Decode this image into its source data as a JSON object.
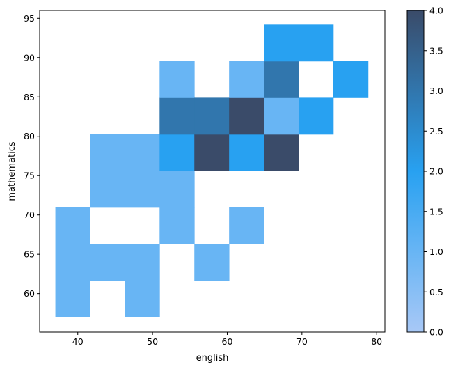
{
  "chart_data": {
    "type": "heatmap",
    "title": "",
    "xlabel": "english",
    "ylabel": "mathematics",
    "xlim": [
      34.9,
      81.1
    ],
    "ylim": [
      55.1,
      96.0
    ],
    "xticks": [
      40,
      50,
      60,
      70,
      80
    ],
    "yticks": [
      60,
      65,
      70,
      75,
      80,
      85,
      90,
      95
    ],
    "x_edges": [
      37.0,
      41.65,
      46.3,
      50.95,
      55.6,
      60.25,
      64.9,
      69.55,
      74.2,
      78.85
    ],
    "y_edges": [
      57.0,
      61.65,
      66.3,
      70.95,
      75.6,
      80.25,
      84.9,
      89.55,
      94.2
    ],
    "counts": [
      [
        1,
        1,
        1,
        0,
        0,
        0,
        0,
        0
      ],
      [
        0,
        1,
        0,
        1,
        1,
        0,
        0,
        0
      ],
      [
        1,
        1,
        0,
        1,
        1,
        0,
        0,
        0
      ],
      [
        0,
        0,
        1,
        1,
        2,
        3,
        1,
        0
      ],
      [
        0,
        1,
        0,
        0,
        4,
        3,
        0,
        0
      ],
      [
        0,
        0,
        1,
        0,
        2,
        4,
        1,
        0
      ],
      [
        0,
        0,
        0,
        0,
        4,
        1,
        3,
        2
      ],
      [
        0,
        0,
        0,
        0,
        0,
        2,
        0,
        2
      ],
      [
        0,
        0,
        0,
        0,
        0,
        0,
        2,
        0
      ]
    ],
    "colorbar": {
      "min": 0,
      "max": 4,
      "ticks": [
        "0.0",
        "0.5",
        "1.0",
        "1.5",
        "2.0",
        "2.5",
        "3.0",
        "3.5",
        "4.0"
      ]
    },
    "colors": {
      "low": "#a8c8f6",
      "mid": "#28a1f1",
      "high": "#3a4b69"
    },
    "grid": false,
    "legend": "none"
  }
}
